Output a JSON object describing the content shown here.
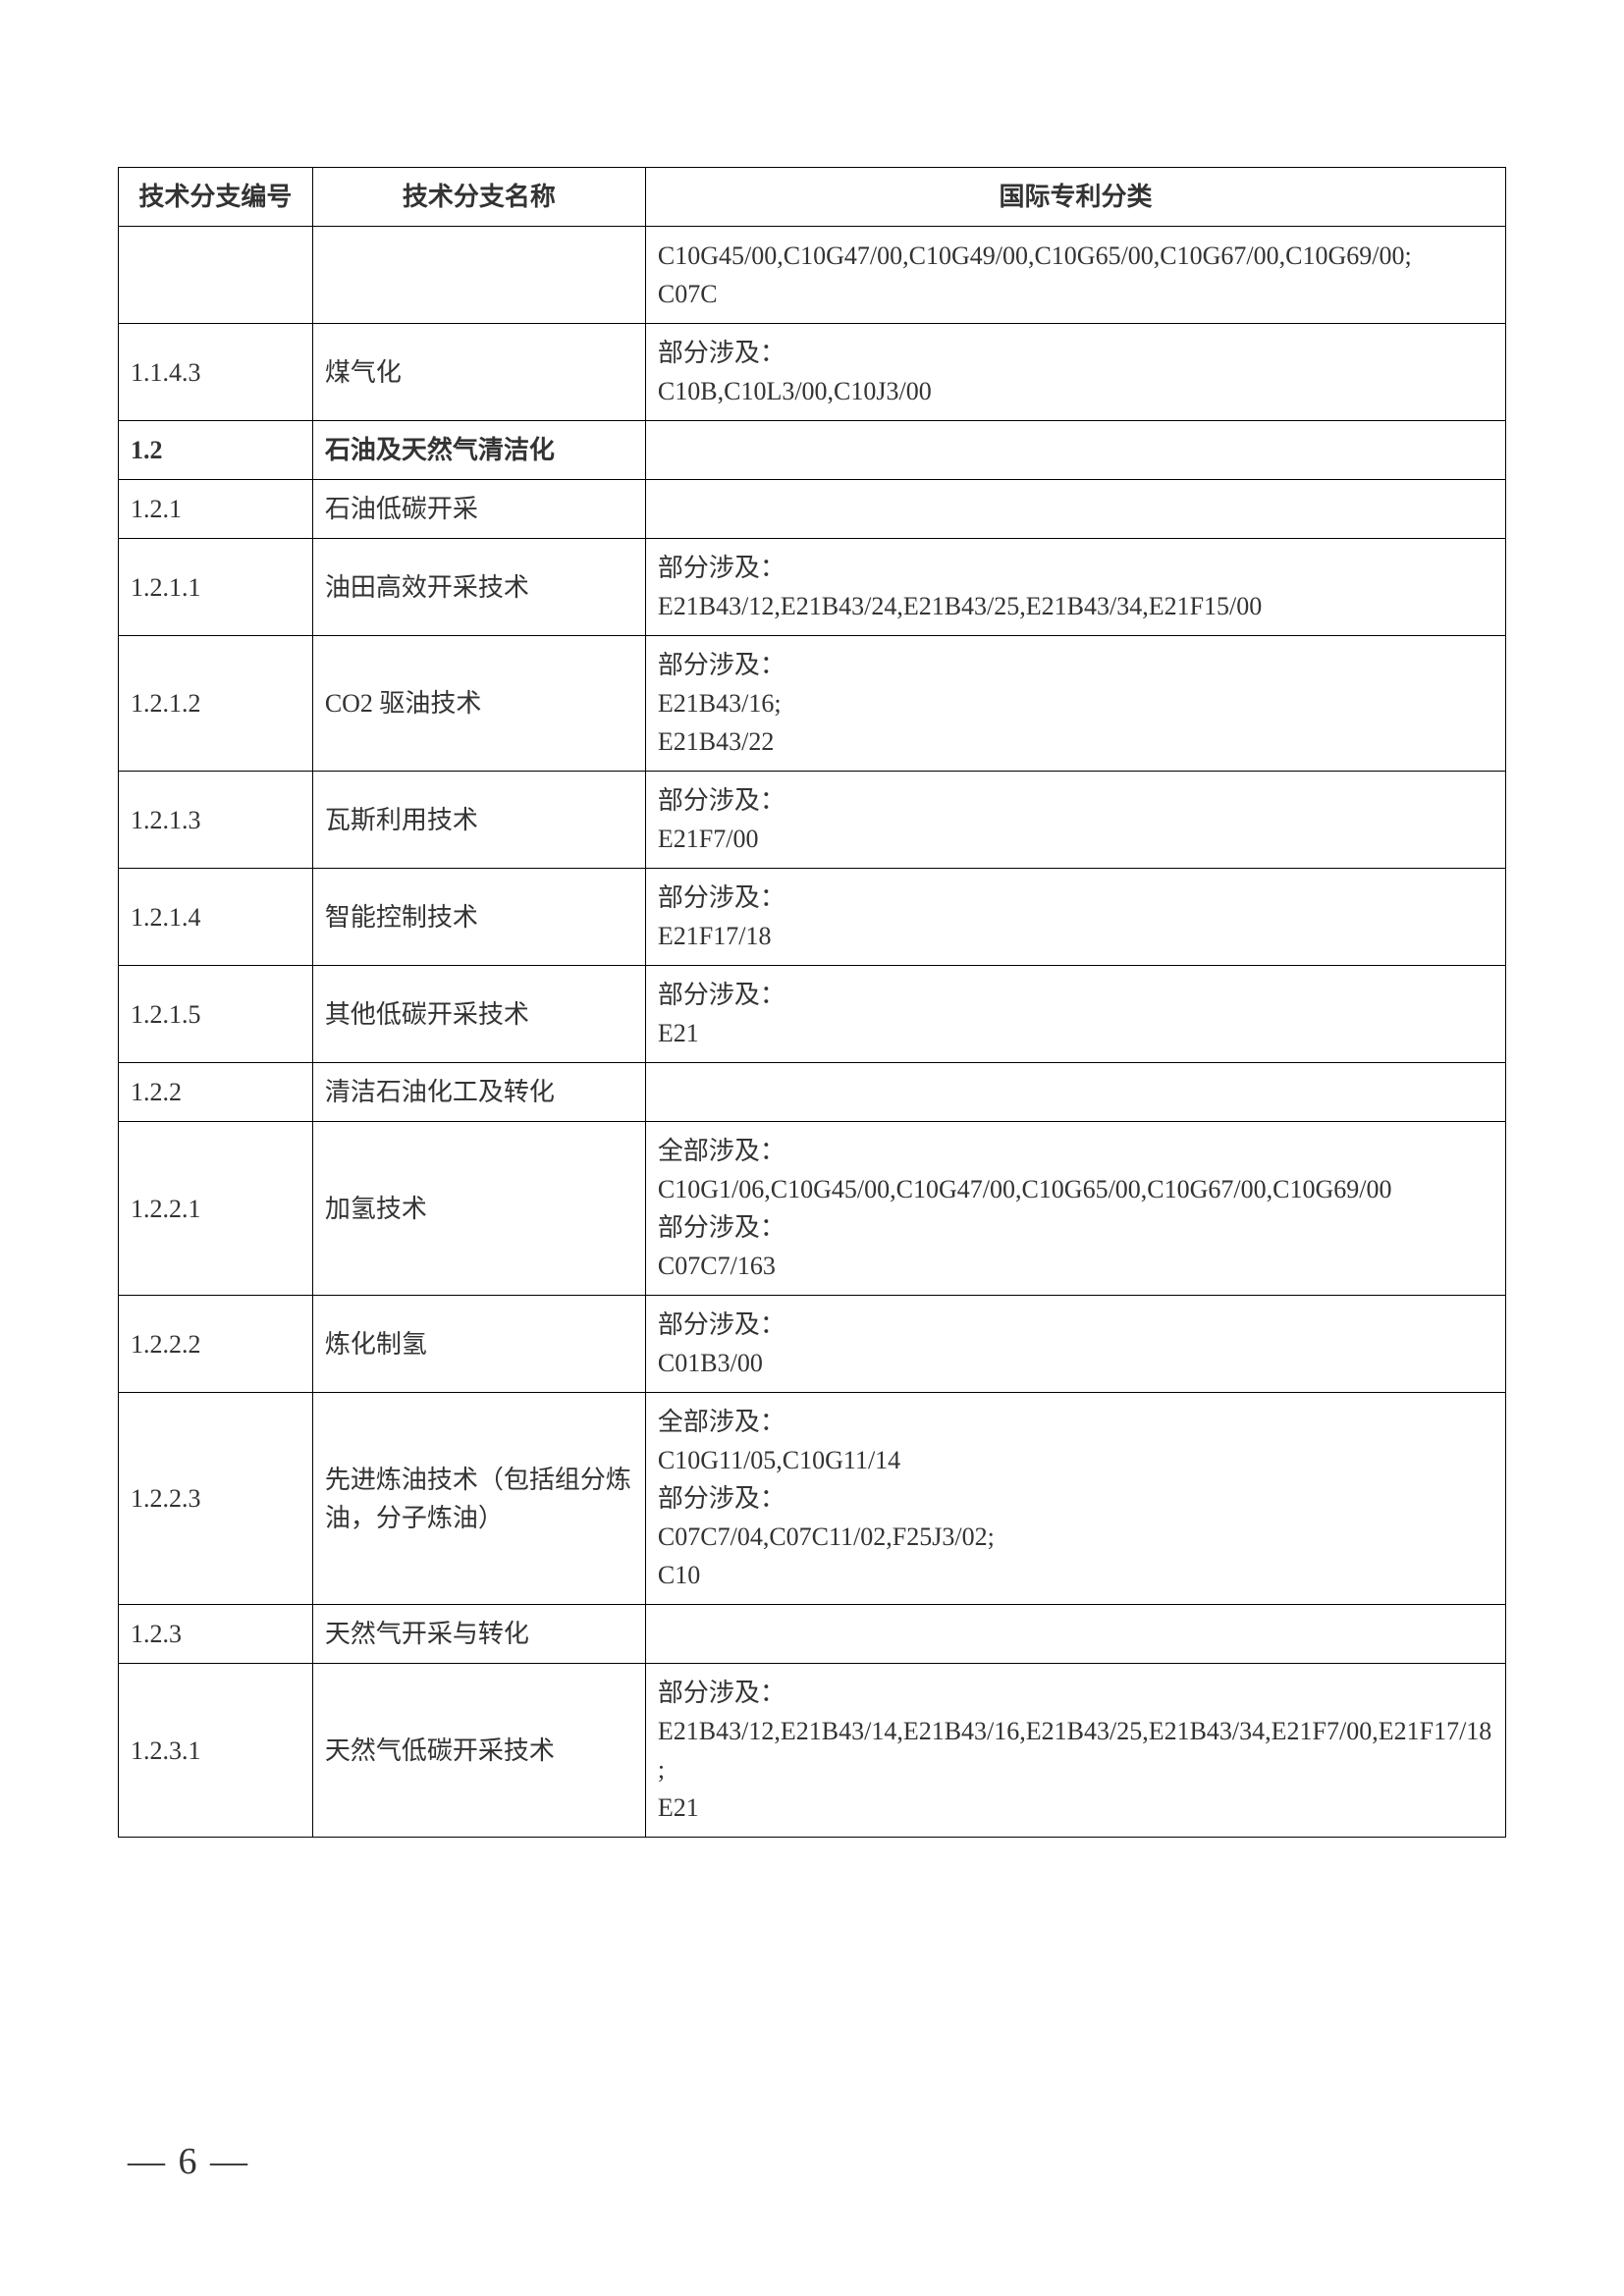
{
  "table": {
    "headers": {
      "col1": "技术分支编号",
      "col2": "技术分支名称",
      "col3": "国际专利分类"
    },
    "rows": [
      {
        "code": "",
        "name": "",
        "ipc": "C10G45/00,C10G47/00,C10G49/00,C10G65/00,C10G67/00,C10G69/00;\nC07C",
        "bold": false
      },
      {
        "code": "1.1.4.3",
        "name": "煤气化",
        "ipc": "部分涉及：\nC10B,C10L3/00,C10J3/00",
        "bold": false
      },
      {
        "code": "1.2",
        "name": "石油及天然气清洁化",
        "ipc": "",
        "bold": true
      },
      {
        "code": "1.2.1",
        "name": "石油低碳开采",
        "ipc": "",
        "bold": false
      },
      {
        "code": "1.2.1.1",
        "name": "油田高效开采技术",
        "ipc": "部分涉及：\nE21B43/12,E21B43/24,E21B43/25,E21B43/34,E21F15/00",
        "bold": false
      },
      {
        "code": "1.2.1.2",
        "name": "CO2 驱油技术",
        "ipc": "部分涉及：\nE21B43/16;\nE21B43/22",
        "bold": false
      },
      {
        "code": "1.2.1.3",
        "name": "瓦斯利用技术",
        "ipc": "部分涉及：\nE21F7/00",
        "bold": false
      },
      {
        "code": "1.2.1.4",
        "name": "智能控制技术",
        "ipc": "部分涉及：\nE21F17/18",
        "bold": false
      },
      {
        "code": "1.2.1.5",
        "name": "其他低碳开采技术",
        "ipc": "部分涉及：\nE21",
        "bold": false
      },
      {
        "code": "1.2.2",
        "name": "清洁石油化工及转化",
        "ipc": "",
        "bold": false
      },
      {
        "code": "1.2.2.1",
        "name": "加氢技术",
        "ipc": "全部涉及：\nC10G1/06,C10G45/00,C10G47/00,C10G65/00,C10G67/00,C10G69/00\n部分涉及：\nC07C7/163",
        "bold": false
      },
      {
        "code": "1.2.2.2",
        "name": "炼化制氢",
        "ipc": "部分涉及：\nC01B3/00",
        "bold": false
      },
      {
        "code": "1.2.2.3",
        "name": "先进炼油技术（包括组分炼油，分子炼油）",
        "ipc": "全部涉及：\nC10G11/05,C10G11/14\n部分涉及：\nC07C7/04,C07C11/02,F25J3/02;\nC10",
        "bold": false
      },
      {
        "code": "1.2.3",
        "name": "天然气开采与转化",
        "ipc": "",
        "bold": false
      },
      {
        "code": "1.2.3.1",
        "name": "天然气低碳开采技术",
        "ipc": "部分涉及：\nE21B43/12,E21B43/14,E21B43/16,E21B43/25,E21B43/34,E21F7/00,E21F17/18;\nE21",
        "bold": false
      }
    ]
  },
  "page_number": "— 6 —"
}
